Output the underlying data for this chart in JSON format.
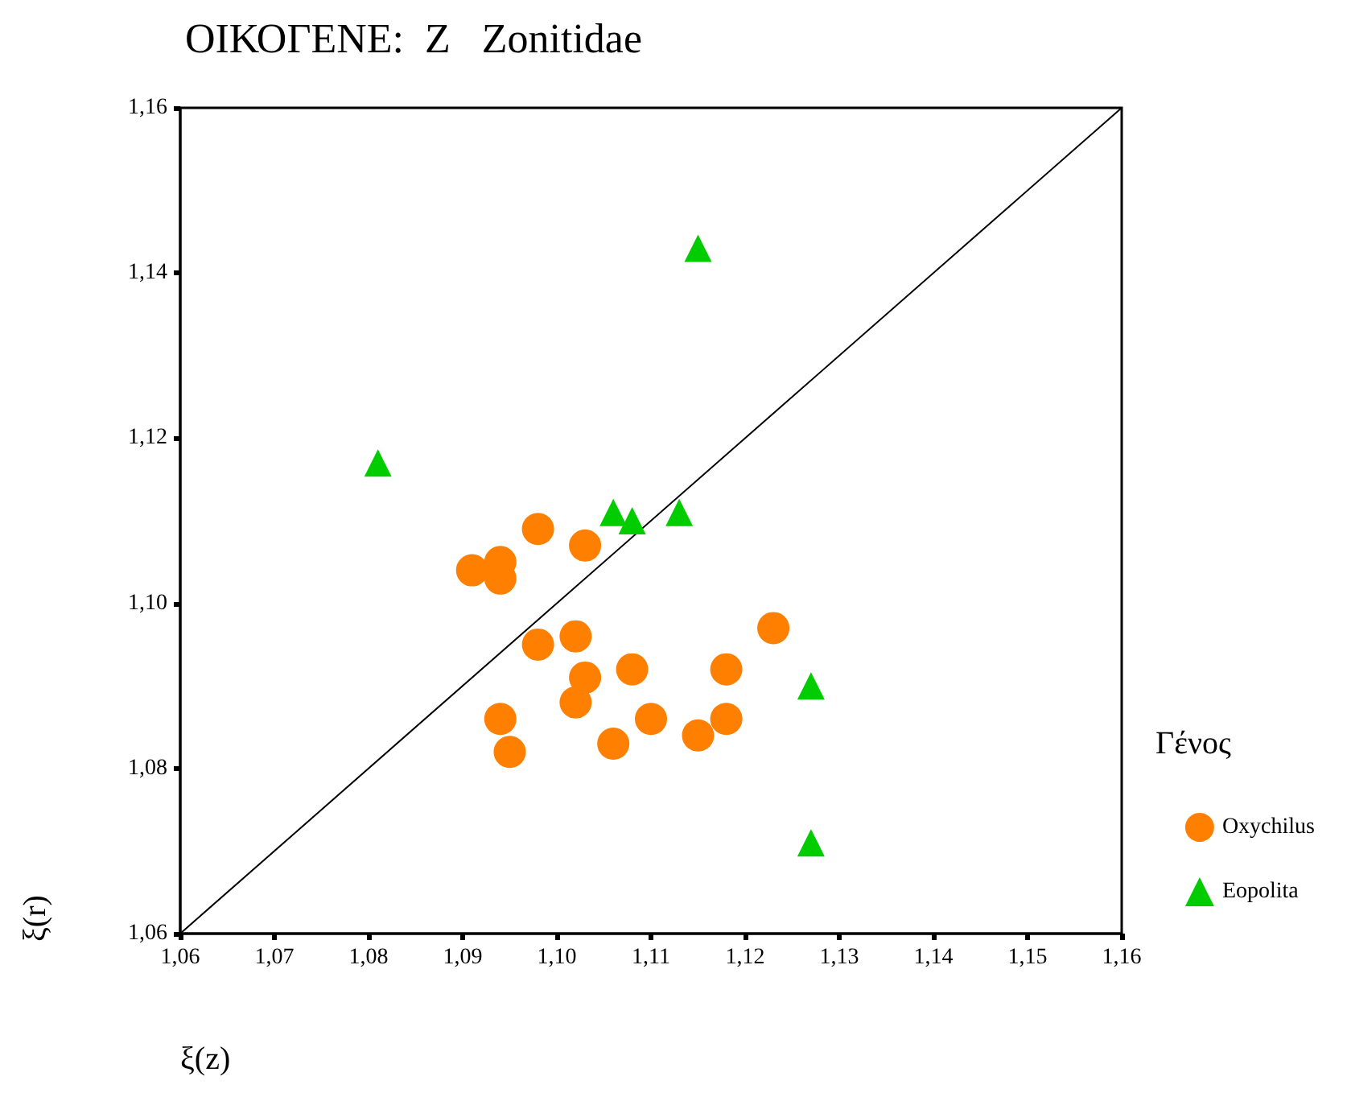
{
  "chart_data": {
    "type": "scatter",
    "title": "ΟΙΚΟΓΕΝΕ:  Z   Zonitidae",
    "xlabel": "ξ(z)",
    "ylabel": "ξ(r)",
    "legend_title": "Γένος",
    "legend": "right",
    "grid": false,
    "xlim": [
      1.06,
      1.16
    ],
    "ylim": [
      1.06,
      1.16
    ],
    "xticks": [
      {
        "value": 1.06,
        "label": "1,06"
      },
      {
        "value": 1.07,
        "label": "1,07"
      },
      {
        "value": 1.08,
        "label": "1,08"
      },
      {
        "value": 1.09,
        "label": "1,09"
      },
      {
        "value": 1.1,
        "label": "1,10"
      },
      {
        "value": 1.11,
        "label": "1,11"
      },
      {
        "value": 1.12,
        "label": "1,12"
      },
      {
        "value": 1.13,
        "label": "1,13"
      },
      {
        "value": 1.14,
        "label": "1,14"
      },
      {
        "value": 1.15,
        "label": "1,15"
      },
      {
        "value": 1.16,
        "label": "1,16"
      }
    ],
    "yticks": [
      {
        "value": 1.06,
        "label": "1,06"
      },
      {
        "value": 1.08,
        "label": "1,08"
      },
      {
        "value": 1.1,
        "label": "1,10"
      },
      {
        "value": 1.12,
        "label": "1,12"
      },
      {
        "value": 1.14,
        "label": "1,14"
      },
      {
        "value": 1.16,
        "label": "1,16"
      }
    ],
    "series": [
      {
        "name": "Oxychilus",
        "color": "#ff8000",
        "marker": "circle",
        "x": [
          1.098,
          1.103,
          1.091,
          1.094,
          1.094,
          1.098,
          1.102,
          1.108,
          1.118,
          1.123,
          1.103,
          1.102,
          1.094,
          1.095,
          1.106,
          1.11,
          1.115,
          1.118
        ],
        "values": [
          1.109,
          1.107,
          1.104,
          1.105,
          1.103,
          1.095,
          1.096,
          1.092,
          1.092,
          1.097,
          1.091,
          1.088,
          1.086,
          1.082,
          1.083,
          1.086,
          1.084,
          1.086
        ]
      },
      {
        "name": "Eopolita",
        "color": "#00cc00",
        "marker": "triangle",
        "x": [
          1.115,
          1.081,
          1.106,
          1.108,
          1.113,
          1.127,
          1.127
        ],
        "values": [
          1.143,
          1.117,
          1.111,
          1.11,
          1.111,
          1.09,
          1.071
        ]
      },
      {
        "type": "line",
        "color": "#000000",
        "marker": "none",
        "line_style": "solid",
        "x": [
          1.06,
          1.16
        ],
        "values": [
          1.06,
          1.16
        ]
      }
    ]
  }
}
